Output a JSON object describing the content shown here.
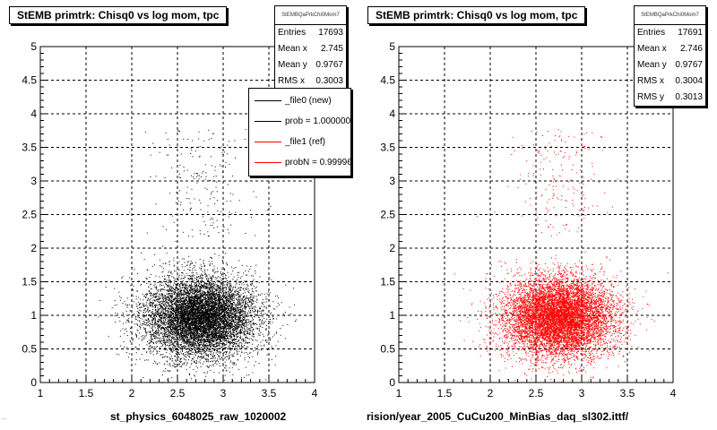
{
  "footer_text": "...",
  "chart_data": [
    {
      "type": "scatter",
      "title": "StEMB primtrk: Chisq0 vs log mom, tpc",
      "xlabel": "st_physics_6048025_raw_1020002",
      "ylabel": "",
      "xlim": [
        1,
        4
      ],
      "ylim": [
        0,
        5
      ],
      "xticks": [
        "1",
        "1.5",
        "2",
        "2.5",
        "3",
        "3.5",
        "4"
      ],
      "yticks": [
        "0",
        "0.5",
        "1",
        "1.5",
        "2",
        "2.5",
        "3",
        "3.5",
        "4",
        "4.5",
        "5"
      ],
      "grid": true,
      "color": "#000000",
      "stats": {
        "header": "StEMBQaPrkChi0Mom7",
        "rows": [
          {
            "label": "Entries",
            "value": "17693"
          },
          {
            "label": "Mean x",
            "value": "2.745"
          },
          {
            "label": "Mean y",
            "value": "0.9767"
          },
          {
            "label": "RMS x",
            "value": "0.3003"
          }
        ]
      },
      "legend": [
        {
          "label": "_file0 (new)",
          "color": "#000000"
        },
        {
          "label": "prob = 1.000000",
          "color": "#000000"
        },
        {
          "label": "_file1 (ref)",
          "color": "#ff0000"
        },
        {
          "label": "probN = 0.999962",
          "color": "#ff0000"
        }
      ],
      "points": {
        "n": 17693,
        "mean_x": 2.745,
        "mean_y": 0.9767,
        "rms_x": 0.3003,
        "rms_y": 0.3013
      }
    },
    {
      "type": "scatter",
      "title": "StEMB primtrk: Chisq0 vs log mom, tpc",
      "xlabel": "rision/year_2005_CuCu200_MinBias_daq_sl302.ittf/",
      "ylabel": "",
      "xlim": [
        1,
        4
      ],
      "ylim": [
        0,
        5
      ],
      "xticks": [
        "1",
        "1.5",
        "2",
        "2.5",
        "3",
        "3.5",
        "4"
      ],
      "yticks": [
        "0",
        "0.5",
        "1",
        "1.5",
        "2",
        "2.5",
        "3",
        "3.5",
        "4",
        "4.5",
        "5"
      ],
      "grid": true,
      "color": "#ff0000",
      "stats": {
        "header": "StEMBQaPrkChi0Mom7",
        "rows": [
          {
            "label": "Entries",
            "value": "17691"
          },
          {
            "label": "Mean x",
            "value": "2.746"
          },
          {
            "label": "Mean y",
            "value": "0.9767"
          },
          {
            "label": "RMS x",
            "value": "0.3004"
          },
          {
            "label": "RMS y",
            "value": "0.3013"
          }
        ]
      },
      "points": {
        "n": 17691,
        "mean_x": 2.746,
        "mean_y": 0.9767,
        "rms_x": 0.3004,
        "rms_y": 0.3013
      }
    }
  ]
}
